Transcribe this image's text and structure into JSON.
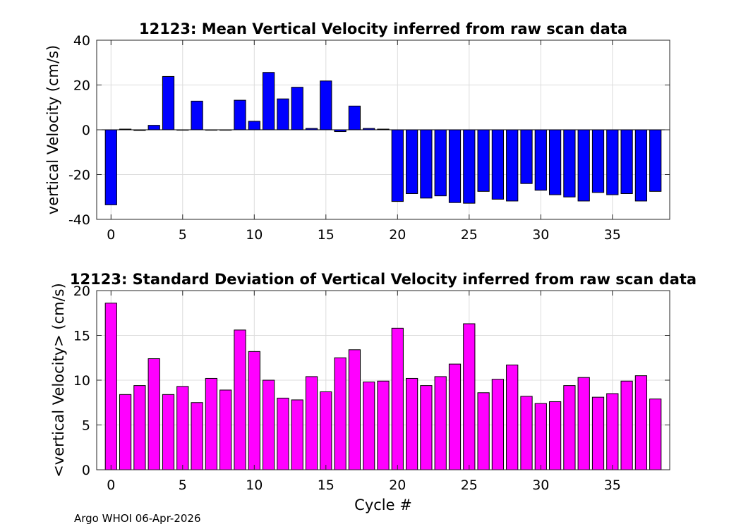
{
  "chart_data": [
    {
      "type": "bar",
      "title": "12123: Mean Vertical Velocity inferred from raw scan data",
      "xlabel": "",
      "ylabel": "vertical Velocity (cm/s)",
      "xlim": [
        -1,
        39
      ],
      "ylim": [
        -40,
        40
      ],
      "xticks": [
        0,
        5,
        10,
        15,
        20,
        25,
        30,
        35
      ],
      "yticks": [
        -40,
        -20,
        0,
        20,
        40
      ],
      "grid": true,
      "color": "#0000ff",
      "x": [
        0,
        1,
        2,
        3,
        4,
        5,
        6,
        7,
        8,
        9,
        10,
        11,
        12,
        13,
        14,
        15,
        16,
        17,
        18,
        19,
        20,
        21,
        22,
        23,
        24,
        25,
        26,
        27,
        28,
        29,
        30,
        31,
        32,
        33,
        34,
        35,
        36,
        37,
        38
      ],
      "values": [
        -33.5,
        0.3,
        -0.3,
        2,
        23.8,
        0,
        12.8,
        0,
        0,
        13.2,
        3.8,
        25.6,
        13.8,
        19,
        0.6,
        21.8,
        -0.8,
        10.6,
        0.6,
        0.3,
        -32,
        -28.5,
        -30.5,
        -29.5,
        -32.5,
        -32.8,
        -27.5,
        -31,
        -31.8,
        -24,
        -27,
        -29,
        -30,
        -31.8,
        -28,
        -29,
        -28.5,
        -31.8,
        -27.5
      ]
    },
    {
      "type": "bar",
      "title": "12123: Standard Deviation of Vertical Velocity inferred from raw scan data",
      "xlabel": "Cycle #",
      "ylabel": "<vertical Velocity> (cm/s)",
      "xlim": [
        -1,
        39
      ],
      "ylim": [
        0,
        20
      ],
      "xticks": [
        0,
        5,
        10,
        15,
        20,
        25,
        30,
        35
      ],
      "yticks": [
        0,
        5,
        10,
        15,
        20
      ],
      "grid": true,
      "color": "#ff00ff",
      "x": [
        0,
        1,
        2,
        3,
        4,
        5,
        6,
        7,
        8,
        9,
        10,
        11,
        12,
        13,
        14,
        15,
        16,
        17,
        18,
        19,
        20,
        21,
        22,
        23,
        24,
        25,
        26,
        27,
        28,
        29,
        30,
        31,
        32,
        33,
        34,
        35,
        36,
        37,
        38
      ],
      "values": [
        18.6,
        8.4,
        9.4,
        12.4,
        8.4,
        9.3,
        7.5,
        10.2,
        8.9,
        15.6,
        13.2,
        10,
        8,
        7.8,
        10.4,
        8.7,
        12.5,
        13.4,
        9.8,
        9.9,
        15.8,
        10.2,
        9.4,
        10.4,
        11.8,
        16.3,
        8.6,
        10.1,
        11.7,
        8.2,
        7.4,
        7.6,
        9.4,
        10.3,
        8.1,
        8.5,
        9.9,
        10.5,
        7.9
      ]
    }
  ],
  "footer": "Argo WHOI 06-Apr-2026"
}
